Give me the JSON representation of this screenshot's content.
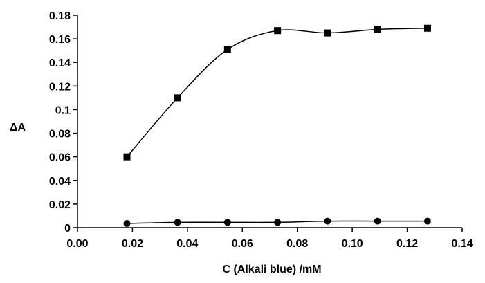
{
  "chart_data": {
    "type": "line",
    "title": "",
    "xlabel": "C (Alkali blue) /mM",
    "ylabel": "ΔA",
    "xlim": [
      0.0,
      0.14
    ],
    "ylim": [
      0.0,
      0.18
    ],
    "x_ticks": [
      "0.00",
      "0.02",
      "0.04",
      "0.06",
      "0.08",
      "0.10",
      "0.12",
      "0.14"
    ],
    "y_ticks": [
      "0",
      "0.02",
      "0.04",
      "0.06",
      "0.08",
      "0.1",
      "0.12",
      "0.14",
      "0.16",
      "0.18"
    ],
    "grid": false,
    "legend": "none",
    "series": [
      {
        "marker": "square",
        "color": "#000000",
        "x": [
          0.018,
          0.0364,
          0.0546,
          0.0728,
          0.091,
          0.1092,
          0.1274
        ],
        "y": [
          0.06,
          0.11,
          0.151,
          0.167,
          0.165,
          0.168,
          0.169
        ]
      },
      {
        "marker": "circle",
        "color": "#000000",
        "x": [
          0.018,
          0.0364,
          0.0546,
          0.0728,
          0.091,
          0.1092,
          0.1274
        ],
        "y": [
          0.0035,
          0.0045,
          0.0045,
          0.0045,
          0.0055,
          0.0055,
          0.0055
        ]
      }
    ]
  }
}
